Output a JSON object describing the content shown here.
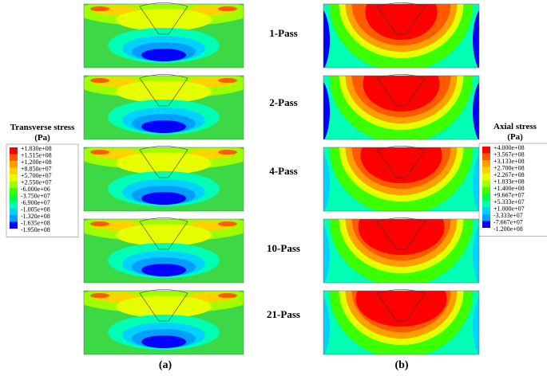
{
  "left_legend": {
    "title": [
      "Transverse stress",
      "(Pa)"
    ],
    "labels": [
      "+1.830e+08",
      "+1.515e+08",
      "+1.200e+08",
      "+8.850e+07",
      "+5.700e+07",
      "+2.550e+07",
      "-6.000e+06",
      "-3.750e+07",
      "-6.900e+07",
      "-1.005e+08",
      "-1.320e+08",
      "-1.635e+08",
      "-1.950e+08"
    ],
    "colors": [
      "#ff0000",
      "#ff5a00",
      "#ff9e00",
      "#ffd200",
      "#e6ff00",
      "#9eff00",
      "#3cff00",
      "#00ff3c",
      "#00ffb4",
      "#00d2ff",
      "#009eff",
      "#0000ff"
    ]
  },
  "right_legend": {
    "title": [
      "Axial stress",
      "(Pa)"
    ],
    "labels": [
      "+4.000e+08",
      "+3.567e+08",
      "+3.133e+08",
      "+2.700e+08",
      "+2.267e+08",
      "+1.833e+08",
      "+1.400e+08",
      "+9.667e+07",
      "+5.333e+07",
      "+1.000e+07",
      "-3.333e+07",
      "-7.667e+07",
      "-1.200e+08"
    ],
    "colors": [
      "#ff0000",
      "#ff5a00",
      "#ff9e00",
      "#ffd200",
      "#e6ff00",
      "#9eff00",
      "#3cff00",
      "#00ff3c",
      "#00ffb4",
      "#00d2ff",
      "#009eff",
      "#0000ff"
    ]
  },
  "passes": [
    "1-Pass",
    "2-Pass",
    "4-Pass",
    "10-Pass",
    "21-Pass"
  ],
  "panel_labels": [
    "(a)",
    "(b)"
  ]
}
